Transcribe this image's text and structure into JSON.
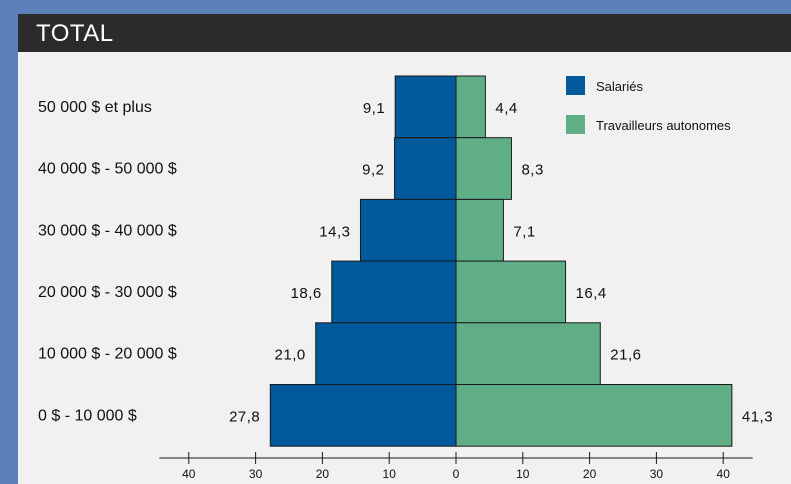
{
  "header": {
    "title": "TOTAL"
  },
  "colors": {
    "left_series": "#00599b",
    "right_series": "#5fae86",
    "outline": "#1a1a1a",
    "panel": "#f1f1f1",
    "header": "#2b2b2b",
    "frame": "#5b80b8"
  },
  "chart_data": {
    "type": "bar",
    "orientation": "horizontal-diverging",
    "title": "TOTAL",
    "categories": [
      "50 000 $ et plus",
      "40 000 $ - 50 000 $",
      "30 000 $ - 40 000 $",
      "20 000 $ - 30 000 $",
      "10 000 $ - 20 000 $",
      "0 $ - 10 000 $"
    ],
    "series": [
      {
        "name": "Salariés",
        "side": "left",
        "values_display": [
          "9,1",
          "9,2",
          "14,3",
          "18,6",
          "21,0",
          "27,8"
        ],
        "values": [
          9.1,
          9.2,
          14.3,
          18.6,
          21.0,
          27.8
        ]
      },
      {
        "name": "Travailleurs autonomes",
        "side": "right",
        "values_display": [
          "4,4",
          "8,3",
          "7,1",
          "16,4",
          "21,6",
          "41,3"
        ],
        "values": [
          4.4,
          8.3,
          7.1,
          16.4,
          21.6,
          41.3
        ]
      }
    ],
    "xlim": [
      -45,
      45
    ],
    "xticks": [
      {
        "value": -40,
        "label": "40"
      },
      {
        "value": -30,
        "label": "30"
      },
      {
        "value": -20,
        "label": "20"
      },
      {
        "value": -10,
        "label": "10"
      },
      {
        "value": 0,
        "label": "0"
      },
      {
        "value": 10,
        "label": "10"
      },
      {
        "value": 20,
        "label": "20"
      },
      {
        "value": 30,
        "label": "30"
      },
      {
        "value": 40,
        "label": "40"
      }
    ],
    "xlabel": "",
    "ylabel": "",
    "legend_position": "top-right",
    "grid": false
  }
}
